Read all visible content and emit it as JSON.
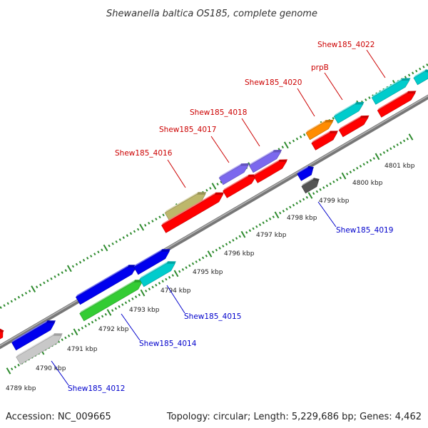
{
  "title": "Shewanella baltica OS185, complete genome",
  "footer": {
    "accession": "Accession: NC_009665",
    "topology": "Topology: circular; Length: 5,229,686 bp; Genes: 4,462"
  },
  "colors": {
    "backbone": "#8c8c8c",
    "tick": "#2e8b2e",
    "label_upper": "#cc0000",
    "label_lower": "#0000cc",
    "scale_text": "#222222"
  },
  "scale": {
    "unit": "kbp",
    "first_kbp": 4789,
    "last_kbp": 4801,
    "labels": [
      "4789 kbp",
      "4790 kbp",
      "4791 kbp",
      "4792 kbp",
      "4793 kbp",
      "4794 kbp",
      "4795 kbp",
      "4796 kbp",
      "4797 kbp",
      "4798 kbp",
      "4799 kbp",
      "4800 kbp",
      "4801 kbp"
    ]
  },
  "genes": [
    {
      "color": "#ff0000",
      "label": ""
    },
    {
      "color": "#0000ee",
      "label": ""
    },
    {
      "color": "#c8c8c8",
      "label": "Shew185_4012"
    },
    {
      "color": "#0000ee",
      "label": ""
    },
    {
      "color": "#33cc33",
      "label": "Shew185_4014"
    },
    {
      "color": "#0000ee",
      "label": ""
    },
    {
      "color": "#00cccc",
      "label": "Shew185_4015"
    },
    {
      "color": "#bdb76b",
      "label": "Shew185_4016"
    },
    {
      "color": "#ff0000",
      "label": ""
    },
    {
      "color": "#7b68ee",
      "label": "Shew185_4017"
    },
    {
      "color": "#ff0000",
      "label": ""
    },
    {
      "color": "#7b68ee",
      "label": "Shew185_4018"
    },
    {
      "color": "#ff0000",
      "label": ""
    },
    {
      "color": "#0000ee",
      "label": "Shew185_4019"
    },
    {
      "color": "#555555",
      "label": ""
    },
    {
      "color": "#ff8c00",
      "label": "Shew185_4020"
    },
    {
      "color": "#ff0000",
      "label": ""
    },
    {
      "color": "#00cccc",
      "label": "prpB"
    },
    {
      "color": "#ff0000",
      "label": ""
    },
    {
      "color": "#00cccc",
      "label": "Shew185_4022"
    },
    {
      "color": "#ff0000",
      "label": ""
    },
    {
      "color": "#00cccc",
      "label": ""
    }
  ]
}
